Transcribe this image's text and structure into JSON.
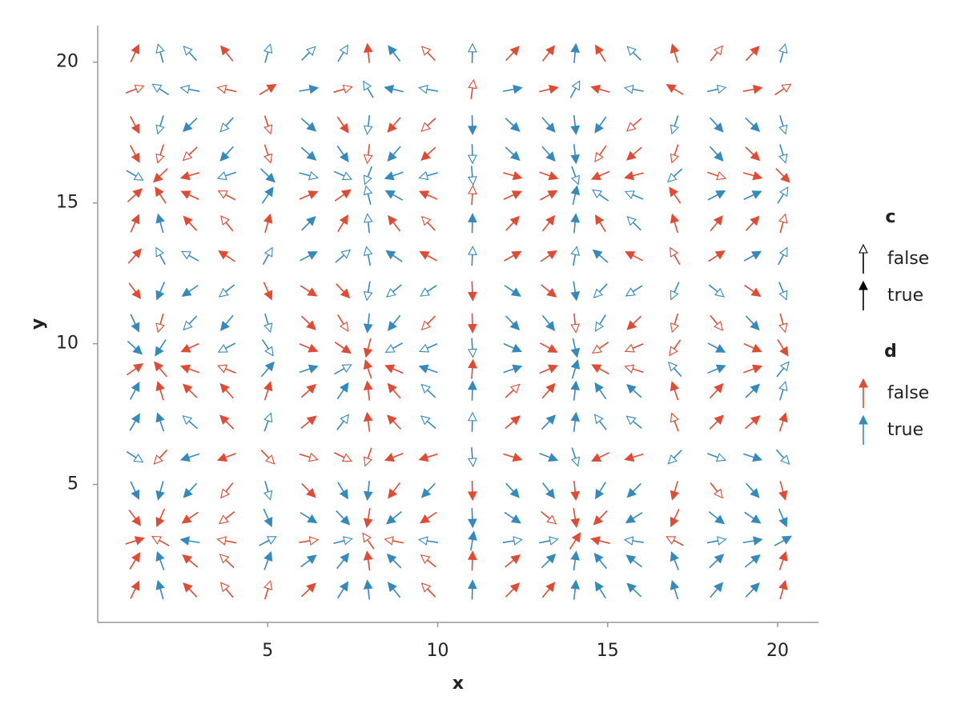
{
  "chart_data": {
    "type": "quiver",
    "xlabel": "x",
    "ylabel": "y",
    "xlim": [
      0,
      21.2
    ],
    "ylim": [
      0.1,
      21.3
    ],
    "xticks": [
      5,
      10,
      15,
      20
    ],
    "yticks": [
      5,
      10,
      15,
      20
    ],
    "x": [
      1.09,
      1.85,
      2.72,
      3.8,
      5.0,
      6.2,
      7.21,
      7.96,
      8.72,
      9.73,
      11.02,
      12.2,
      13.26,
      14.04,
      14.79,
      15.78,
      16.98,
      18.2,
      19.26,
      20.15
    ],
    "y": [
      20.31,
      19.03,
      17.78,
      16.75,
      15.98,
      15.27,
      14.27,
      13.11,
      11.88,
      10.74,
      9.86,
      9.09,
      8.32,
      7.21,
      5.98,
      4.79,
      3.82,
      2.99,
      2.28,
      1.25
    ],
    "u": [
      0.462,
      -0.276,
      -0.912,
      -0.791,
      0.284,
      0.997,
      0.6,
      -0.106,
      -0.762,
      -0.953,
      0.024,
      0.934,
      0.769,
      0.097,
      -0.607,
      -0.997,
      -0.294,
      0.797,
      0.917,
      0.267
    ],
    "v": [
      0.994,
      0.179,
      -0.876,
      -0.866,
      -0.268,
      0.424,
      0.991,
      0.517,
      -0.633,
      -0.967,
      -0.421,
      0.329,
      0.894,
      0.8,
      -0.299,
      -0.997,
      -0.628,
      0.151,
      0.759,
      0.949
    ],
    "d": [
      [
        false,
        true,
        true,
        false,
        true,
        true,
        true,
        false,
        true,
        false,
        true,
        false,
        false,
        true,
        false,
        true,
        false,
        false,
        false,
        true
      ],
      [
        false,
        true,
        true,
        false,
        false,
        true,
        false,
        true,
        true,
        true,
        false,
        true,
        false,
        true,
        false,
        true,
        false,
        true,
        false,
        false
      ],
      [
        false,
        true,
        true,
        true,
        false,
        true,
        false,
        true,
        false,
        false,
        true,
        true,
        true,
        true,
        true,
        false,
        true,
        true,
        true,
        true
      ],
      [
        false,
        false,
        false,
        true,
        false,
        true,
        true,
        false,
        true,
        false,
        true,
        true,
        true,
        true,
        false,
        false,
        false,
        true,
        false,
        true
      ],
      [
        true,
        false,
        false,
        true,
        true,
        true,
        true,
        true,
        true,
        true,
        true,
        false,
        false,
        true,
        false,
        false,
        true,
        false,
        false,
        false
      ],
      [
        false,
        false,
        false,
        false,
        true,
        false,
        false,
        true,
        true,
        false,
        false,
        false,
        false,
        true,
        true,
        true,
        false,
        true,
        true,
        true
      ],
      [
        false,
        true,
        false,
        false,
        false,
        true,
        false,
        true,
        false,
        false,
        true,
        false,
        false,
        true,
        false,
        true,
        false,
        false,
        false,
        false
      ],
      [
        false,
        true,
        true,
        false,
        true,
        true,
        true,
        true,
        true,
        false,
        true,
        false,
        false,
        true,
        true,
        false,
        false,
        false,
        true,
        true
      ],
      [
        false,
        true,
        true,
        true,
        false,
        false,
        false,
        true,
        true,
        true,
        false,
        true,
        false,
        true,
        true,
        true,
        true,
        true,
        false,
        true
      ],
      [
        true,
        false,
        true,
        true,
        true,
        false,
        false,
        true,
        true,
        false,
        false,
        true,
        true,
        false,
        true,
        false,
        false,
        false,
        true,
        false
      ],
      [
        true,
        true,
        false,
        true,
        true,
        false,
        false,
        false,
        true,
        true,
        true,
        true,
        false,
        true,
        false,
        false,
        false,
        true,
        false,
        false
      ],
      [
        false,
        false,
        false,
        false,
        true,
        true,
        true,
        false,
        false,
        true,
        false,
        true,
        false,
        true,
        false,
        false,
        true,
        true,
        false,
        true
      ],
      [
        true,
        false,
        false,
        false,
        false,
        false,
        true,
        false,
        false,
        true,
        true,
        false,
        false,
        true,
        true,
        true,
        false,
        false,
        true,
        true
      ],
      [
        true,
        true,
        true,
        false,
        true,
        false,
        true,
        false,
        false,
        true,
        true,
        false,
        true,
        true,
        true,
        true,
        false,
        false,
        false,
        false
      ],
      [
        true,
        false,
        true,
        false,
        false,
        false,
        false,
        false,
        false,
        false,
        true,
        false,
        true,
        true,
        false,
        false,
        true,
        true,
        true,
        true
      ],
      [
        true,
        true,
        true,
        false,
        true,
        false,
        true,
        true,
        false,
        true,
        false,
        true,
        true,
        false,
        true,
        true,
        false,
        false,
        true,
        false
      ],
      [
        false,
        false,
        false,
        false,
        true,
        true,
        true,
        false,
        true,
        false,
        true,
        true,
        false,
        false,
        false,
        true,
        false,
        true,
        true,
        true
      ],
      [
        false,
        false,
        true,
        false,
        true,
        false,
        true,
        false,
        false,
        true,
        true,
        true,
        true,
        false,
        false,
        true,
        false,
        true,
        true,
        true
      ],
      [
        false,
        true,
        false,
        false,
        true,
        true,
        true,
        false,
        true,
        false,
        false,
        false,
        true,
        true,
        true,
        true,
        true,
        true,
        true,
        false
      ],
      [
        false,
        true,
        false,
        false,
        false,
        false,
        true,
        true,
        true,
        false,
        true,
        false,
        false,
        true,
        true,
        true,
        true,
        true,
        true,
        false
      ]
    ],
    "c": [
      [
        true,
        false,
        false,
        true,
        false,
        false,
        false,
        true,
        true,
        false,
        false,
        true,
        true,
        true,
        true,
        false,
        true,
        false,
        true,
        false
      ],
      [
        false,
        false,
        false,
        false,
        true,
        true,
        false,
        false,
        true,
        false,
        false,
        true,
        true,
        false,
        true,
        false,
        true,
        false,
        true,
        false
      ],
      [
        true,
        false,
        true,
        false,
        false,
        true,
        true,
        false,
        true,
        false,
        true,
        true,
        true,
        true,
        true,
        false,
        false,
        true,
        true,
        false
      ],
      [
        true,
        false,
        false,
        true,
        false,
        true,
        true,
        false,
        true,
        true,
        false,
        true,
        true,
        true,
        false,
        true,
        false,
        true,
        true,
        false
      ],
      [
        false,
        true,
        true,
        false,
        true,
        false,
        false,
        false,
        true,
        false,
        false,
        true,
        true,
        false,
        true,
        true,
        false,
        false,
        true,
        true
      ],
      [
        true,
        true,
        true,
        false,
        true,
        true,
        true,
        false,
        true,
        true,
        false,
        true,
        true,
        true,
        false,
        false,
        true,
        true,
        true,
        false
      ],
      [
        true,
        true,
        true,
        false,
        true,
        true,
        true,
        false,
        true,
        false,
        true,
        true,
        true,
        true,
        true,
        false,
        true,
        true,
        true,
        false
      ],
      [
        true,
        false,
        false,
        true,
        false,
        true,
        false,
        false,
        true,
        true,
        false,
        true,
        true,
        false,
        true,
        true,
        false,
        true,
        true,
        false
      ],
      [
        true,
        true,
        true,
        false,
        true,
        true,
        true,
        false,
        false,
        false,
        true,
        true,
        true,
        true,
        false,
        false,
        false,
        false,
        true,
        false
      ],
      [
        true,
        false,
        false,
        true,
        false,
        true,
        false,
        true,
        true,
        false,
        true,
        true,
        true,
        false,
        false,
        true,
        false,
        false,
        true,
        false
      ],
      [
        true,
        true,
        true,
        false,
        false,
        true,
        true,
        true,
        false,
        false,
        false,
        true,
        true,
        true,
        false,
        false,
        false,
        true,
        true,
        true
      ],
      [
        true,
        true,
        true,
        false,
        true,
        true,
        false,
        true,
        true,
        true,
        true,
        true,
        true,
        true,
        true,
        false,
        false,
        true,
        true,
        false
      ],
      [
        true,
        true,
        true,
        true,
        true,
        true,
        true,
        true,
        true,
        false,
        true,
        false,
        true,
        true,
        true,
        true,
        true,
        true,
        true,
        false
      ],
      [
        true,
        true,
        false,
        true,
        false,
        true,
        false,
        true,
        true,
        false,
        false,
        true,
        true,
        true,
        false,
        false,
        false,
        true,
        true,
        true
      ],
      [
        false,
        false,
        true,
        true,
        false,
        false,
        false,
        false,
        true,
        true,
        false,
        true,
        true,
        false,
        true,
        true,
        false,
        false,
        true,
        false
      ],
      [
        true,
        true,
        true,
        false,
        false,
        true,
        true,
        true,
        true,
        true,
        true,
        true,
        true,
        true,
        true,
        true,
        true,
        false,
        true,
        true
      ],
      [
        true,
        true,
        true,
        false,
        true,
        true,
        true,
        true,
        true,
        true,
        true,
        true,
        false,
        true,
        true,
        true,
        true,
        true,
        true,
        true
      ],
      [
        true,
        false,
        true,
        false,
        false,
        false,
        false,
        false,
        false,
        false,
        true,
        false,
        false,
        true,
        true,
        false,
        false,
        false,
        true,
        true
      ],
      [
        true,
        true,
        true,
        false,
        true,
        true,
        true,
        true,
        true,
        false,
        true,
        true,
        true,
        true,
        true,
        true,
        true,
        true,
        true,
        true
      ],
      [
        true,
        true,
        true,
        false,
        false,
        true,
        true,
        true,
        true,
        false,
        true,
        true,
        true,
        true,
        true,
        true,
        true,
        true,
        true,
        true
      ]
    ],
    "colors": {
      "false": "#e24a33",
      "true": "#348abd"
    },
    "legend": [
      {
        "title": "c",
        "labels": [
          "false",
          "true"
        ]
      },
      {
        "title": "d",
        "labels": [
          "false",
          "true"
        ]
      }
    ]
  }
}
